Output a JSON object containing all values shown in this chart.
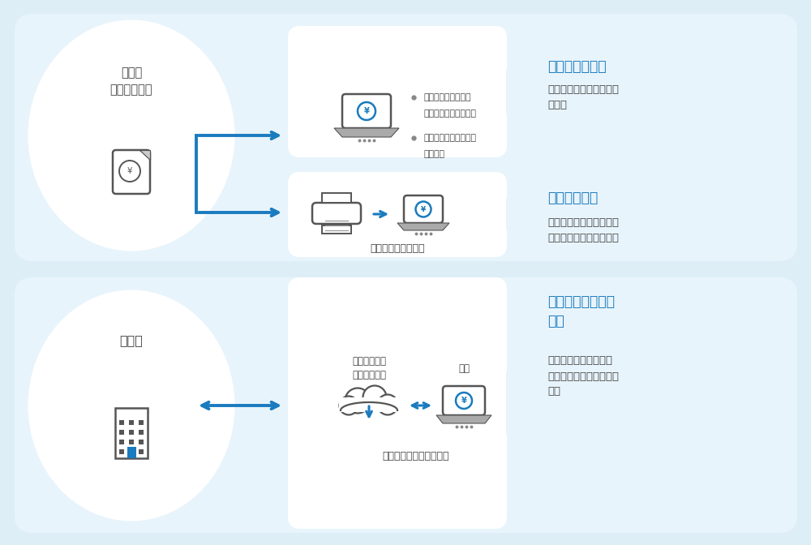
{
  "bg_color": "#ddeef7",
  "panel_color": "#e8f4fb",
  "white_panel_color": "#ffffff",
  "blue_color": "#1a7bbf",
  "text_color": "#444444",
  "icon_color": "#555555",
  "title1": "帳簿書類の保存",
  "desc1": "帳簿・書類を電子データ\nで保存",
  "title2": "スキャナ保存",
  "desc2": "紙で受領・作成した書類\nを画像データ化して保存",
  "title3": "電子取引データの\n保存",
  "desc3": "電子的に授受した取引\n情報を電子データのまま\n保存",
  "left_label1": "請求書\n領収書の受領",
  "left_label2": "取引先",
  "bullet1_line1": "（会計ソフト等で）",
  "bullet1_line2": "電子的に作成した帳簿",
  "bullet1_line3": "電子的に作成した国税",
  "bullet1_line4": "関係書類",
  "scan_label": "スキャン・読み取り",
  "net_label": "ネット上から\nダウンロード",
  "jisha_label": "自社",
  "email_label": "（電子メール等で）受領"
}
